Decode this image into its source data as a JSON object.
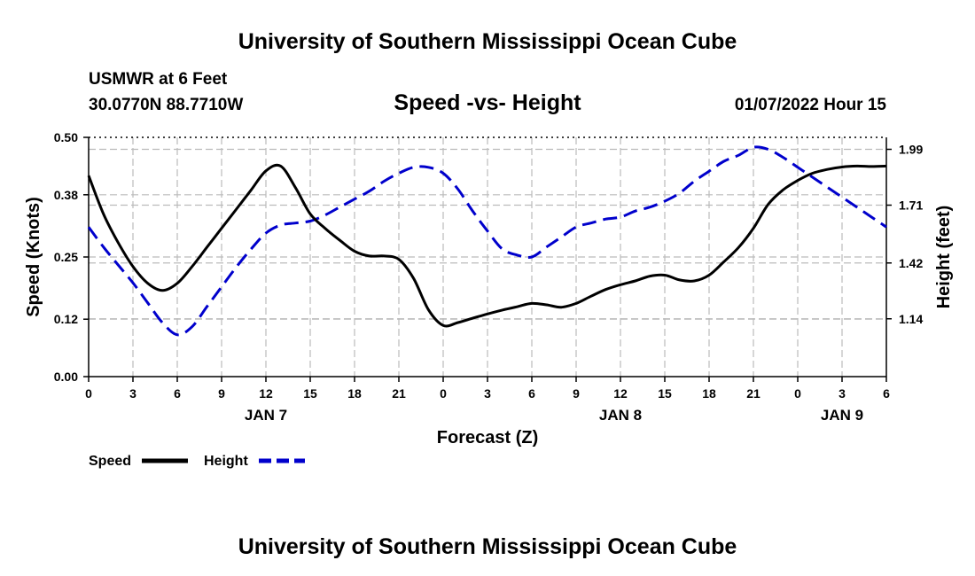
{
  "page": {
    "title": "University of Southern Mississippi Ocean Cube",
    "footer_title": "University of Southern Mississippi Ocean Cube",
    "station": "USMWR at 6 Feet",
    "location": "30.0770N  88.7710W",
    "datetime": "01/07/2022 Hour 15"
  },
  "colors": {
    "speed": "#000000",
    "height": "#0000cc",
    "grid": "#bbbbbb"
  },
  "chart_data": {
    "type": "line",
    "title": "Speed -vs- Height",
    "xlabel": "Forecast (Z)",
    "ylabel": "Speed (Knots)",
    "y2label": "Height (feet)",
    "xlim": [
      0,
      54
    ],
    "ylim": [
      0,
      0.5
    ],
    "y2lim": [
      0.85,
      2.05
    ],
    "x_ticks": [
      0,
      3,
      6,
      9,
      12,
      15,
      18,
      21,
      24,
      27,
      30,
      33,
      36,
      39,
      42,
      45,
      48,
      51,
      54
    ],
    "x_tick_labels": [
      "0",
      "3",
      "6",
      "9",
      "12",
      "15",
      "18",
      "21",
      "0",
      "3",
      "6",
      "9",
      "12",
      "15",
      "18",
      "21",
      "0",
      "3",
      "6"
    ],
    "day_labels": [
      {
        "x": 12,
        "label": "JAN 7"
      },
      {
        "x": 36,
        "label": "JAN 8"
      },
      {
        "x": 51,
        "label": "JAN 9"
      }
    ],
    "y_ticks": [
      0,
      0.12,
      0.25,
      0.38,
      0.5
    ],
    "y_tick_labels": [
      "0.00",
      "0.12",
      "0.25",
      "0.38",
      "0.50"
    ],
    "y2_ticks": [
      1.14,
      1.42,
      1.71,
      1.99
    ],
    "y2_tick_labels": [
      "1.14",
      "1.42",
      "1.71",
      "1.99"
    ],
    "series": [
      {
        "name": "Speed",
        "axis": "left",
        "x": [
          0,
          1,
          2,
          3,
          4,
          5,
          6,
          7,
          8,
          9,
          10,
          11,
          12,
          13,
          14,
          15,
          16,
          17,
          18,
          19,
          20,
          21,
          22,
          23,
          24,
          25,
          26,
          27,
          28,
          29,
          30,
          31,
          32,
          33,
          34,
          35,
          36,
          37,
          38,
          39,
          40,
          41,
          42,
          43,
          44,
          45,
          46,
          47,
          48,
          49,
          50,
          51,
          52,
          53,
          54
        ],
        "values": [
          0.42,
          0.34,
          0.28,
          0.23,
          0.195,
          0.18,
          0.195,
          0.23,
          0.27,
          0.31,
          0.35,
          0.39,
          0.43,
          0.44,
          0.395,
          0.34,
          0.31,
          0.285,
          0.262,
          0.252,
          0.252,
          0.245,
          0.205,
          0.14,
          0.107,
          0.113,
          0.122,
          0.131,
          0.139,
          0.146,
          0.153,
          0.15,
          0.145,
          0.153,
          0.168,
          0.182,
          0.192,
          0.2,
          0.21,
          0.212,
          0.202,
          0.2,
          0.212,
          0.24,
          0.27,
          0.31,
          0.36,
          0.39,
          0.41,
          0.425,
          0.433,
          0.438,
          0.44,
          0.439,
          0.44
        ]
      },
      {
        "name": "Height",
        "axis": "right",
        "x": [
          0,
          1,
          2,
          3,
          4,
          5,
          6,
          7,
          8,
          9,
          10,
          11,
          12,
          13,
          14,
          15,
          16,
          17,
          18,
          19,
          20,
          21,
          22,
          23,
          24,
          25,
          26,
          27,
          28,
          29,
          30,
          31,
          32,
          33,
          34,
          35,
          36,
          37,
          38,
          39,
          40,
          41,
          42,
          43,
          44,
          45,
          46,
          47,
          48,
          49,
          50,
          51,
          52,
          53,
          54
        ],
        "values": [
          1.6,
          1.5,
          1.41,
          1.32,
          1.22,
          1.12,
          1.06,
          1.1,
          1.2,
          1.3,
          1.4,
          1.49,
          1.57,
          1.61,
          1.62,
          1.63,
          1.66,
          1.7,
          1.74,
          1.78,
          1.83,
          1.87,
          1.9,
          1.9,
          1.87,
          1.79,
          1.68,
          1.58,
          1.49,
          1.46,
          1.45,
          1.5,
          1.55,
          1.6,
          1.62,
          1.64,
          1.65,
          1.68,
          1.7,
          1.73,
          1.77,
          1.83,
          1.88,
          1.93,
          1.96,
          2.0,
          1.99,
          1.95,
          1.9,
          1.85,
          1.8,
          1.75,
          1.7,
          1.65,
          1.6
        ]
      }
    ]
  }
}
